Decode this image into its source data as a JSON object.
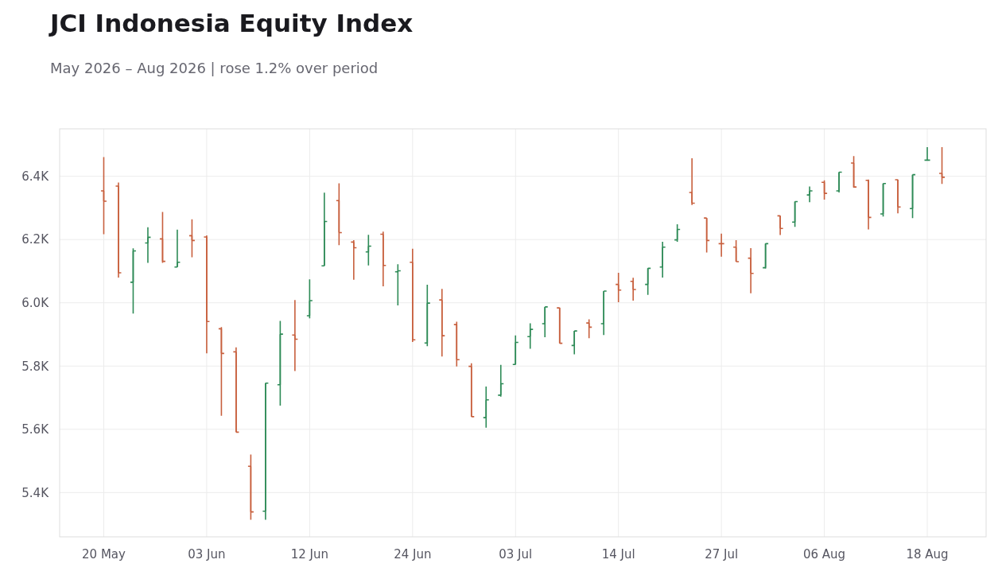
{
  "chart_data": {
    "type": "candlestick",
    "title": "JCI Indonesia Equity Index",
    "subtitle": "May 2026 – Aug 2026 | rose 1.2% over period",
    "categories": [
      "20 May",
      null,
      null,
      null,
      null,
      null,
      null,
      "03 Jun",
      null,
      null,
      null,
      null,
      null,
      null,
      "12 Jun",
      null,
      null,
      null,
      null,
      null,
      null,
      "24 Jun",
      null,
      null,
      null,
      null,
      null,
      null,
      "03 Jul",
      null,
      null,
      null,
      null,
      null,
      null,
      "14 Jul",
      null,
      null,
      null,
      null,
      null,
      null,
      "27 Jul",
      null,
      null,
      null,
      null,
      null,
      null,
      "06 Aug",
      null,
      null,
      null,
      null,
      null,
      null,
      "18 Aug",
      null
    ],
    "ohlc": [
      [
        6354,
        6461,
        6217,
        6321
      ],
      [
        6369,
        6380,
        6080,
        6095
      ],
      [
        6065,
        6172,
        5966,
        6164
      ],
      [
        6189,
        6239,
        6126,
        6207
      ],
      [
        6202,
        6287,
        6126,
        6131
      ],
      [
        6113,
        6231,
        6113,
        6128
      ],
      [
        6212,
        6264,
        6144,
        6197
      ],
      [
        6208,
        6213,
        5840,
        5941
      ],
      [
        5918,
        5923,
        5643,
        5840
      ],
      [
        5845,
        5859,
        5591,
        5591
      ],
      [
        5483,
        5520,
        5314,
        5339
      ],
      [
        5341,
        5746,
        5314,
        5746
      ],
      [
        5741,
        5943,
        5675,
        5901
      ],
      [
        5898,
        6009,
        5784,
        5885
      ],
      [
        5959,
        6074,
        5951,
        6007
      ],
      [
        6117,
        6348,
        6117,
        6257
      ],
      [
        6323,
        6378,
        6182,
        6222
      ],
      [
        6192,
        6198,
        6073,
        6174
      ],
      [
        6161,
        6215,
        6118,
        6179
      ],
      [
        6217,
        6225,
        6052,
        6118
      ],
      [
        6098,
        6122,
        5992,
        6101
      ],
      [
        6128,
        6171,
        5876,
        5883
      ],
      [
        5873,
        6057,
        5863,
        5999
      ],
      [
        6009,
        6044,
        5830,
        5896
      ],
      [
        5931,
        5940,
        5799,
        5820
      ],
      [
        5799,
        5809,
        5640,
        5640
      ],
      [
        5637,
        5735,
        5605,
        5693
      ],
      [
        5708,
        5804,
        5703,
        5744
      ],
      [
        5805,
        5897,
        5805,
        5875
      ],
      [
        5893,
        5935,
        5855,
        5916
      ],
      [
        5934,
        5987,
        5891,
        5987
      ],
      [
        5984,
        5985,
        5872,
        5872
      ],
      [
        5865,
        5911,
        5837,
        5911
      ],
      [
        5936,
        5948,
        5888,
        5923
      ],
      [
        5934,
        6037,
        5898,
        6037
      ],
      [
        6058,
        6095,
        6002,
        6040
      ],
      [
        6068,
        6079,
        6007,
        6042
      ],
      [
        6058,
        6109,
        6025,
        6109
      ],
      [
        6113,
        6193,
        6080,
        6176
      ],
      [
        6199,
        6248,
        6193,
        6232
      ],
      [
        6349,
        6457,
        6309,
        6315
      ],
      [
        6268,
        6268,
        6159,
        6197
      ],
      [
        6187,
        6219,
        6146,
        6187
      ],
      [
        6176,
        6198,
        6130,
        6130
      ],
      [
        6141,
        6173,
        6030,
        6093
      ],
      [
        6111,
        6187,
        6108,
        6187
      ],
      [
        6275,
        6275,
        6214,
        6235
      ],
      [
        6255,
        6320,
        6240,
        6320
      ],
      [
        6341,
        6368,
        6318,
        6354
      ],
      [
        6381,
        6387,
        6326,
        6346
      ],
      [
        6354,
        6413,
        6349,
        6413
      ],
      [
        6442,
        6464,
        6364,
        6366
      ],
      [
        6387,
        6390,
        6232,
        6270
      ],
      [
        6281,
        6377,
        6273,
        6377
      ],
      [
        6389,
        6390,
        6283,
        6303
      ],
      [
        6298,
        6405,
        6268,
        6405
      ],
      [
        6451,
        6492,
        6451,
        6451
      ],
      [
        6409,
        6492,
        6376,
        6397
      ]
    ],
    "colors": [
      "#c8603e",
      "#c8603e",
      "#2e8b57",
      "#2e8b57",
      "#c8603e",
      "#2e8b57",
      "#c8603e",
      "#c8603e",
      "#c8603e",
      "#c8603e",
      "#c8603e",
      "#2e8b57",
      "#2e8b57",
      "#c8603e",
      "#2e8b57",
      "#2e8b57",
      "#c8603e",
      "#c8603e",
      "#2e8b57",
      "#c8603e",
      "#2e8b57",
      "#c8603e",
      "#2e8b57",
      "#c8603e",
      "#c8603e",
      "#c8603e",
      "#2e8b57",
      "#2e8b57",
      "#2e8b57",
      "#2e8b57",
      "#2e8b57",
      "#c8603e",
      "#2e8b57",
      "#c8603e",
      "#2e8b57",
      "#c8603e",
      "#c8603e",
      "#2e8b57",
      "#2e8b57",
      "#2e8b57",
      "#c8603e",
      "#c8603e",
      "#c8603e",
      "#c8603e",
      "#c8603e",
      "#2e8b57",
      "#c8603e",
      "#2e8b57",
      "#2e8b57",
      "#c8603e",
      "#2e8b57",
      "#c8603e",
      "#c8603e",
      "#2e8b57",
      "#c8603e",
      "#2e8b57",
      "#2e8b57",
      "#c8603e"
    ],
    "ylim": [
      5260,
      6550
    ],
    "yticks": [
      {
        "value": 5400,
        "label": "5.4K"
      },
      {
        "value": 5600,
        "label": "5.6K"
      },
      {
        "value": 5800,
        "label": "5.8K"
      },
      {
        "value": 6000,
        "label": "6.0K"
      },
      {
        "value": 6200,
        "label": "6.2K"
      },
      {
        "value": 6400,
        "label": "6.4K"
      }
    ],
    "grid": true
  }
}
